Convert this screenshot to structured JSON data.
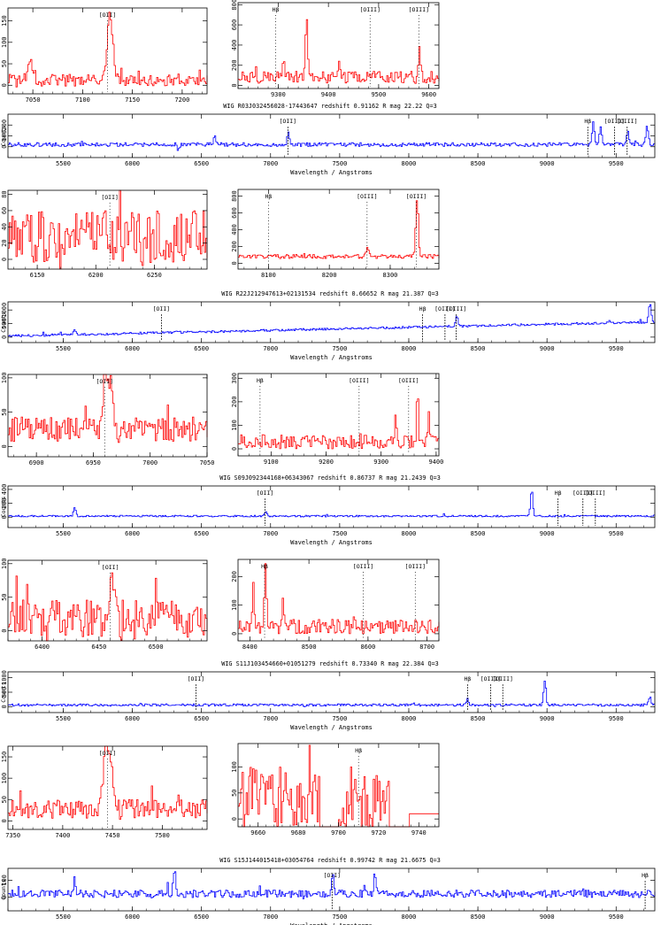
{
  "colors": {
    "zoom_spectrum": "#ff0000",
    "full_spectrum": "#0000ff",
    "axes": "#000000"
  },
  "chart_data": [
    {
      "title": "WIG R03J032456028-17443647 redshift 0.91162 R mag 22.22 Q=3",
      "full": {
        "type": "line",
        "xlabel": "Wavelength / Angstroms",
        "ylabel": "Counts",
        "xlim": [
          5100,
          9780
        ],
        "ylim": [
          -100,
          300
        ],
        "xticks": [
          5500,
          6000,
          6500,
          7000,
          7500,
          8000,
          8500,
          9000,
          9500
        ],
        "yticks": [
          {
            "v": 0,
            "l": "0"
          },
          {
            "v": 100,
            "l": "100"
          },
          {
            "v": 200,
            "l": "200"
          }
        ],
        "lines": [
          {
            "label": "[OII]",
            "x": 7125
          },
          {
            "label": "Hβ",
            "x": 9295
          },
          {
            "label": "[OIII]",
            "x": 9488
          },
          {
            "label": "[OIII]",
            "x": 9580
          }
        ],
        "features": [
          [
            6330,
            -50
          ],
          [
            6590,
            70
          ],
          [
            7125,
            110
          ],
          [
            9330,
            200
          ],
          [
            9385,
            160
          ],
          [
            9580,
            120
          ],
          [
            9720,
            170
          ]
        ],
        "baseline": 20,
        "noise": 18
      },
      "zoom_left": {
        "type": "line",
        "xlim": [
          7025,
          7225
        ],
        "ylim": [
          -20,
          180
        ],
        "xticks": [
          7050,
          7100,
          7150,
          7200
        ],
        "yticks": [
          0,
          50,
          100,
          150
        ],
        "lines": [
          {
            "label": "[OII]",
            "x": 7125
          }
        ],
        "features": [
          [
            7127,
            150
          ],
          [
            7047,
            40
          ]
        ],
        "baseline": 12,
        "noise": 14,
        "fw": 4
      },
      "zoom_right": {
        "type": "line",
        "xlim": [
          9220,
          9620
        ],
        "ylim": [
          -30,
          820
        ],
        "xticks": [
          9300,
          9400,
          9500,
          9600
        ],
        "yticks": [
          0,
          200,
          400,
          600,
          800
        ],
        "lines": [
          {
            "label": "Hβ",
            "x": 9295
          },
          {
            "label": "[OIII]",
            "x": 9483
          },
          {
            "label": "[OIII]",
            "x": 9580
          }
        ],
        "features": [
          [
            9355,
            650
          ],
          [
            9580,
            300
          ],
          [
            9310,
            200
          ],
          [
            9420,
            170
          ]
        ],
        "baseline": 80,
        "noise": 60,
        "fw": 3
      }
    },
    {
      "title": "WIG R22J212947613+02131534 redshift 0.66652 R mag 21.387 Q=3",
      "full": {
        "type": "line",
        "xlabel": "Wavelength / Angstroms",
        "ylabel": "Counts",
        "xlim": [
          5100,
          9780
        ],
        "ylim": [
          -200,
          1300
        ],
        "xticks": [
          5500,
          6000,
          6500,
          7000,
          7500,
          8000,
          8500,
          9000,
          9500
        ],
        "yticks": [
          {
            "v": 0,
            "l": "0"
          },
          {
            "v": 500,
            "l": "500"
          },
          {
            "v": 1000,
            "l": "1000"
          }
        ],
        "lines": [
          {
            "label": "[OII]",
            "x": 6210
          },
          {
            "label": "Hβ",
            "x": 8100
          },
          {
            "label": "[OIII]",
            "x": 8262
          },
          {
            "label": "[OIII]",
            "x": 8343
          }
        ],
        "features": [
          [
            5578,
            150
          ],
          [
            8343,
            400
          ],
          [
            9740,
            700
          ]
        ],
        "baseline": 40,
        "slope": 520,
        "noise": 40
      },
      "zoom_left": {
        "type": "line",
        "xlim": [
          6125,
          6295
        ],
        "ylim": [
          -12,
          85
        ],
        "xticks": [
          6150,
          6200,
          6250
        ],
        "yticks": [
          0,
          20,
          40,
          60,
          80
        ],
        "lines": [
          {
            "label": "[OII]",
            "x": 6212
          }
        ],
        "features": [],
        "baseline": 28,
        "noise": 32,
        "fw": 3
      },
      "zoom_right": {
        "type": "line",
        "xlim": [
          8050,
          8380
        ],
        "ylim": [
          -70,
          880
        ],
        "xticks": [
          8100,
          8200,
          8300
        ],
        "yticks": [
          0,
          200,
          400,
          600,
          800
        ],
        "lines": [
          {
            "label": "Hβ",
            "x": 8100
          },
          {
            "label": "[OIII]",
            "x": 8262
          },
          {
            "label": "[OIII]",
            "x": 8343
          }
        ],
        "features": [
          [
            8343,
            700
          ],
          [
            8262,
            90
          ]
        ],
        "baseline": 80,
        "noise": 25,
        "fw": 3
      }
    },
    {
      "title": "WIG S09J092344168+06343067 redshift 0.86737 R mag 21.2439 Q=3",
      "full": {
        "type": "line",
        "xlabel": "Wavelength / Angstroms",
        "ylabel": "Counts",
        "xlim": [
          5100,
          9780
        ],
        "ylim": [
          -150,
          450
        ],
        "xticks": [
          5500,
          6000,
          6500,
          7000,
          7500,
          8000,
          8500,
          9000,
          9500
        ],
        "yticks": [
          {
            "v": 0,
            "l": "0"
          },
          {
            "v": 200,
            "l": "200"
          },
          {
            "v": 400,
            "l": "400"
          }
        ],
        "lines": [
          {
            "label": "[OII]",
            "x": 6960
          },
          {
            "label": "Hβ",
            "x": 9080
          },
          {
            "label": "[OIII]",
            "x": 9260
          },
          {
            "label": "[OIII]",
            "x": 9350
          }
        ],
        "features": [
          [
            5578,
            120
          ],
          [
            8885,
            380
          ],
          [
            6960,
            60
          ]
        ],
        "baseline": 15,
        "noise": 12
      },
      "zoom_left": {
        "type": "line",
        "xlim": [
          6875,
          7050
        ],
        "ylim": [
          -15,
          105
        ],
        "xticks": [
          6900,
          6950,
          7000,
          7050
        ],
        "yticks": [
          0,
          50,
          100
        ],
        "lines": [
          {
            "label": "[OII]",
            "x": 6960
          }
        ],
        "features": [
          [
            6960,
            85
          ],
          [
            6965,
            55
          ]
        ],
        "baseline": 25,
        "noise": 18,
        "fw": 3
      },
      "zoom_right": {
        "type": "line",
        "xlim": [
          9040,
          9405
        ],
        "ylim": [
          -30,
          320
        ],
        "xticks": [
          9100,
          9200,
          9300,
          9400
        ],
        "yticks": [
          0,
          100,
          200,
          300
        ],
        "lines": [
          {
            "label": "Hβ",
            "x": 9080
          },
          {
            "label": "[OIII]",
            "x": 9260
          },
          {
            "label": "[OIII]",
            "x": 9350
          }
        ],
        "features": [
          [
            9365,
            250
          ],
          [
            9385,
            150
          ],
          [
            9325,
            120
          ]
        ],
        "baseline": 30,
        "noise": 30,
        "fw": 2
      }
    },
    {
      "title": "WIG S11J103454660+01051279 redshift 0.73340 R mag 22.384 Q=3",
      "full": {
        "type": "line",
        "xlabel": "Wavelength / Angstroms",
        "ylabel": "Counts",
        "xlim": [
          5100,
          9780
        ],
        "ylim": [
          -200,
          1200
        ],
        "xticks": [
          5500,
          6000,
          6500,
          7000,
          7500,
          8000,
          8500,
          9000,
          9500
        ],
        "yticks": [
          {
            "v": 0,
            "l": "0"
          },
          {
            "v": 500,
            "l": "500"
          },
          {
            "v": 1000,
            "l": "1000"
          }
        ],
        "lines": [
          {
            "label": "[OII]",
            "x": 6460
          },
          {
            "label": "Hβ",
            "x": 8425
          },
          {
            "label": "[OIII]",
            "x": 8592
          },
          {
            "label": "[OIII]",
            "x": 8680
          }
        ],
        "features": [
          [
            8980,
            850
          ],
          [
            8420,
            200
          ],
          [
            9740,
            300
          ]
        ],
        "baseline": 60,
        "noise": 40
      },
      "zoom_left": {
        "type": "line",
        "xlim": [
          6370,
          6545
        ],
        "ylim": [
          -15,
          105
        ],
        "xticks": [
          6400,
          6450,
          6500
        ],
        "yticks": [
          0,
          50,
          100
        ],
        "lines": [
          {
            "label": "[OII]",
            "x": 6460
          }
        ],
        "features": [
          [
            6460,
            55
          ]
        ],
        "baseline": 18,
        "noise": 28,
        "fw": 3
      },
      "zoom_right": {
        "type": "line",
        "xlim": [
          8380,
          8720
        ],
        "ylim": [
          -25,
          260
        ],
        "xticks": [
          8400,
          8500,
          8600,
          8700
        ],
        "yticks": [
          0,
          100,
          200
        ],
        "lines": [
          {
            "label": "Hβ",
            "x": 8425
          },
          {
            "label": "[OIII]",
            "x": 8592
          },
          {
            "label": "[OIII]",
            "x": 8680
          }
        ],
        "features": [
          [
            8425,
            210
          ],
          [
            8405,
            150
          ],
          [
            8455,
            120
          ]
        ],
        "baseline": 25,
        "noise": 25,
        "fw": 2
      }
    },
    {
      "title": "WIG S15J144015418+03054764 redshift 0.99742 R mag 21.6675 Q=3",
      "full": {
        "type": "line",
        "xlabel": "Wavelength / Angstroms",
        "ylabel": "Counts",
        "xlim": [
          5100,
          9780
        ],
        "ylim": [
          -80,
          170
        ],
        "xticks": [
          5500,
          6000,
          6500,
          7000,
          7500,
          8000,
          8500,
          9000,
          9500
        ],
        "yticks": [
          {
            "v": 0,
            "l": "0"
          },
          {
            "v": 100,
            "l": "100"
          }
        ],
        "lines": [
          {
            "label": "[OII]",
            "x": 7445
          },
          {
            "label": "Hβ",
            "x": 9710
          }
        ],
        "features": [
          [
            5578,
            90
          ],
          [
            6300,
            140
          ],
          [
            7445,
            110
          ],
          [
            7750,
            110
          ]
        ],
        "baseline": 20,
        "noise": 22
      },
      "zoom_left": {
        "type": "line",
        "xlim": [
          7345,
          7545
        ],
        "ylim": [
          -20,
          175
        ],
        "xticks": [
          7350,
          7400,
          7450,
          7500
        ],
        "yticks": [
          0,
          50,
          100,
          150
        ],
        "lines": [
          {
            "label": "[OII]",
            "x": 7445
          }
        ],
        "features": [
          [
            7443,
            130
          ],
          [
            7448,
            80
          ]
        ],
        "baseline": 28,
        "noise": 22,
        "fw": 4
      },
      "zoom_right": {
        "type": "line",
        "xlim": [
          9650,
          9750
        ],
        "ylim": [
          -15,
          145
        ],
        "xticks": [
          9660,
          9680,
          9700,
          9720,
          9740
        ],
        "yticks": [
          0,
          50,
          100
        ],
        "lines": [
          {
            "label": "Hβ",
            "x": 9710
          }
        ],
        "features": [],
        "baseline": 40,
        "noise": 60,
        "fw": 2,
        "gappy": true
      }
    }
  ]
}
